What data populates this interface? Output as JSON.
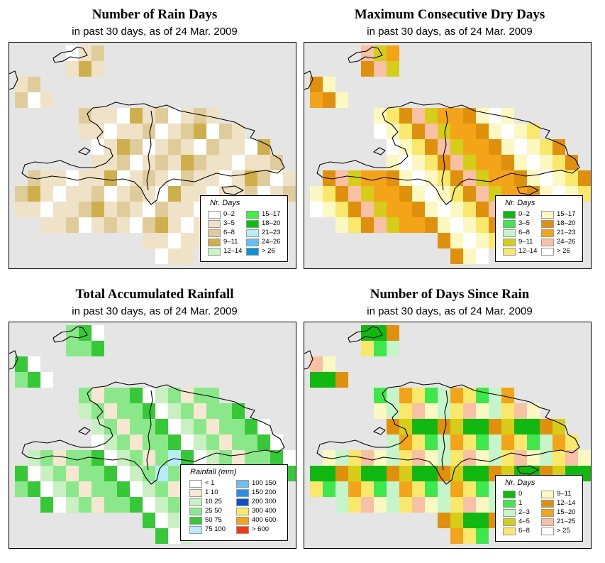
{
  "panels": [
    {
      "title": "Number of Rain Days",
      "subtitle": "in past 30 days, as of  24 Mar. 2009",
      "legend": {
        "title": "Nr. Days",
        "items": [
          {
            "label": "0–2",
            "color": "#ffffff"
          },
          {
            "label": "3–5",
            "color": "#efe2c7"
          },
          {
            "label": "6–8",
            "color": "#e0cc9a"
          },
          {
            "label": "9–11",
            "color": "#cfae4e"
          },
          {
            "label": "12–14",
            "color": "#c8f5c8"
          },
          {
            "label": "15–17",
            "color": "#40f040"
          },
          {
            "label": "18–20",
            "color": "#0ac00a"
          },
          {
            "label": "21–23",
            "color": "#b8ecf7"
          },
          {
            "label": "24–26",
            "color": "#64bff5"
          },
          {
            "label": "> 26",
            "color": "#0e90d6"
          }
        ]
      }
    },
    {
      "title": "Maximum Consecutive Dry Days",
      "subtitle": "in past 30 days, as of  24 Mar. 2009",
      "legend": {
        "title": "Nr. Days",
        "items": [
          {
            "label": "0–2",
            "color": "#11b811"
          },
          {
            "label": "3–5",
            "color": "#3ee84c"
          },
          {
            "label": "6–8",
            "color": "#c5f5c8"
          },
          {
            "label": "9–11",
            "color": "#d6cc1a"
          },
          {
            "label": "12–14",
            "color": "#f9e86c"
          },
          {
            "label": "15–17",
            "color": "#fcf8c2"
          },
          {
            "label": "18–20",
            "color": "#df900c"
          },
          {
            "label": "21–23",
            "color": "#f4a418"
          },
          {
            "label": "24–26",
            "color": "#f8c0a4"
          },
          {
            "label": "> 26",
            "color": "#ffffff"
          }
        ]
      }
    },
    {
      "title": "Total Accumulated Rainfall",
      "subtitle": "in past 30 days, as of  24 Mar. 2009",
      "legend": {
        "title": "Rainfall (mm)",
        "items": [
          {
            "label": "< 1",
            "color": "#ffffff"
          },
          {
            "label": "1    10",
            "color": "#f6e7d2"
          },
          {
            "label": "10    25",
            "color": "#c8f0c0"
          },
          {
            "label": "25    50",
            "color": "#8ae88a"
          },
          {
            "label": "50    75",
            "color": "#36c836"
          },
          {
            "label": "75  100",
            "color": "#b8ecf7"
          },
          {
            "label": "100  150",
            "color": "#6cbff0"
          },
          {
            "label": "150  200",
            "color": "#2a8ee6"
          },
          {
            "label": "200  300",
            "color": "#1050c8"
          },
          {
            "label": "300  400",
            "color": "#f9e86c"
          },
          {
            "label": "400  600",
            "color": "#f4a418"
          },
          {
            "label": "> 600",
            "color": "#f03c12"
          }
        ]
      }
    },
    {
      "title": "Number of Days Since Rain",
      "subtitle": "in past 30 days, as of  24 Mar. 2009",
      "legend": {
        "title": "Nr. Days",
        "items": [
          {
            "label": "0",
            "color": "#11b811"
          },
          {
            "label": "1",
            "color": "#3ee84c"
          },
          {
            "label": "2–3",
            "color": "#c5f5c8"
          },
          {
            "label": "4–5",
            "color": "#d6cc1a"
          },
          {
            "label": "6–8",
            "color": "#f9e86c"
          },
          {
            "label": "9–11",
            "color": "#fcf8c2"
          },
          {
            "label": "12–14",
            "color": "#df900c"
          },
          {
            "label": "15–20",
            "color": "#f4a418"
          },
          {
            "label": "21–25",
            "color": "#f8c0a4"
          },
          {
            "label": "> 25",
            "color": "#ffffff"
          }
        ]
      }
    }
  ]
}
